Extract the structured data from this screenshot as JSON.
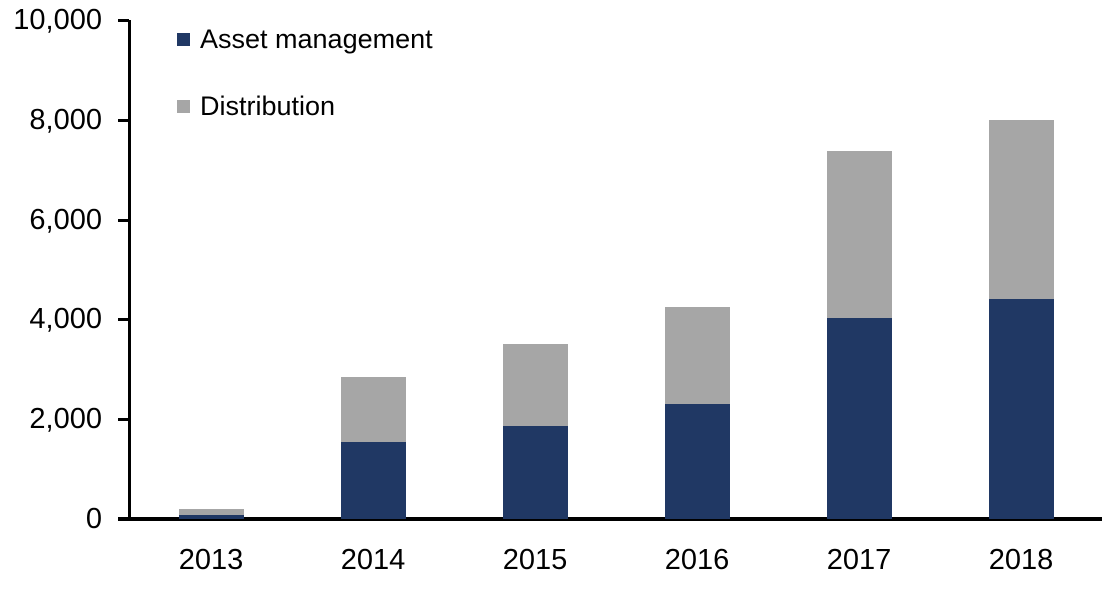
{
  "chart_data": {
    "type": "bar",
    "stacked": true,
    "title": "",
    "xlabel": "",
    "ylabel": "",
    "categories": [
      "2013",
      "2014",
      "2015",
      "2016",
      "2017",
      "2018"
    ],
    "series": [
      {
        "name": "Asset management",
        "color": "#203864",
        "values": [
          80,
          1550,
          1870,
          2300,
          4030,
          4400
        ]
      },
      {
        "name": "Distribution",
        "color": "#A6A6A6",
        "values": [
          120,
          1300,
          1630,
          1950,
          3350,
          3600
        ]
      }
    ],
    "ylim": [
      0,
      10000
    ],
    "ytick_interval": 2000,
    "ytick_labels": [
      "0",
      "2,000",
      "4,000",
      "6,000",
      "8,000",
      "10,000"
    ],
    "grid": false,
    "legend_position": "top-left-inside",
    "axis_color": "#000000",
    "background_color": "#FFFFFF"
  }
}
